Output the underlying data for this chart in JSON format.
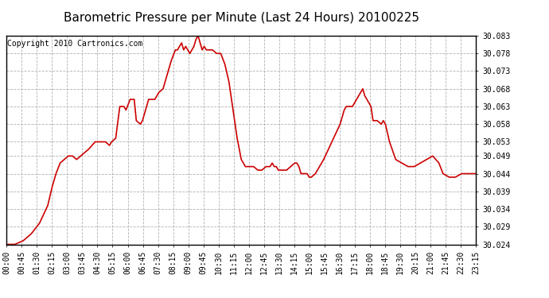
{
  "title": "Barometric Pressure per Minute (Last 24 Hours) 20100225",
  "copyright": "Copyright 2010 Cartronics.com",
  "line_color": "#cc0000",
  "background_color": "#ffffff",
  "grid_color": "#aaaaaa",
  "ylim": [
    30.024,
    30.083
  ],
  "yticks": [
    30.083,
    30.078,
    30.073,
    30.068,
    30.063,
    30.058,
    30.053,
    30.049,
    30.044,
    30.039,
    30.034,
    30.029,
    30.024
  ],
  "xtick_labels": [
    "00:00",
    "00:45",
    "01:30",
    "02:15",
    "03:00",
    "03:45",
    "04:30",
    "05:15",
    "06:00",
    "06:45",
    "07:30",
    "08:15",
    "09:00",
    "09:45",
    "10:30",
    "11:15",
    "12:00",
    "12:45",
    "13:30",
    "14:15",
    "15:00",
    "15:45",
    "16:30",
    "17:15",
    "18:00",
    "18:45",
    "19:30",
    "20:15",
    "21:00",
    "21:45",
    "22:30",
    "23:15"
  ],
  "title_fontsize": 11,
  "copyright_fontsize": 7,
  "tick_fontsize": 7,
  "line_width": 1.2,
  "keypoints": [
    [
      0,
      30.024
    ],
    [
      20,
      30.024
    ],
    [
      40,
      30.025
    ],
    [
      60,
      30.027
    ],
    [
      80,
      30.03
    ],
    [
      100,
      30.035
    ],
    [
      110,
      30.04
    ],
    [
      120,
      30.044
    ],
    [
      130,
      30.047
    ],
    [
      140,
      30.048
    ],
    [
      150,
      30.049
    ],
    [
      160,
      30.049
    ],
    [
      170,
      30.048
    ],
    [
      180,
      30.049
    ],
    [
      190,
      30.05
    ],
    [
      200,
      30.051
    ],
    [
      215,
      30.053
    ],
    [
      230,
      30.053
    ],
    [
      240,
      30.053
    ],
    [
      250,
      30.052
    ],
    [
      255,
      30.053
    ],
    [
      265,
      30.054
    ],
    [
      275,
      30.063
    ],
    [
      285,
      30.063
    ],
    [
      290,
      30.062
    ],
    [
      300,
      30.065
    ],
    [
      310,
      30.065
    ],
    [
      315,
      30.059
    ],
    [
      325,
      30.058
    ],
    [
      330,
      30.059
    ],
    [
      340,
      30.063
    ],
    [
      345,
      30.065
    ],
    [
      350,
      30.065
    ],
    [
      360,
      30.065
    ],
    [
      370,
      30.067
    ],
    [
      380,
      30.068
    ],
    [
      390,
      30.072
    ],
    [
      400,
      30.076
    ],
    [
      410,
      30.079
    ],
    [
      415,
      30.079
    ],
    [
      420,
      30.08
    ],
    [
      425,
      30.081
    ],
    [
      430,
      30.079
    ],
    [
      435,
      30.08
    ],
    [
      440,
      30.079
    ],
    [
      445,
      30.078
    ],
    [
      450,
      30.079
    ],
    [
      455,
      30.08
    ],
    [
      460,
      30.082
    ],
    [
      465,
      30.083
    ],
    [
      470,
      30.081
    ],
    [
      475,
      30.079
    ],
    [
      480,
      30.08
    ],
    [
      485,
      30.079
    ],
    [
      490,
      30.079
    ],
    [
      500,
      30.079
    ],
    [
      510,
      30.078
    ],
    [
      515,
      30.078
    ],
    [
      520,
      30.078
    ],
    [
      530,
      30.075
    ],
    [
      540,
      30.07
    ],
    [
      550,
      30.062
    ],
    [
      560,
      30.054
    ],
    [
      570,
      30.048
    ],
    [
      580,
      30.046
    ],
    [
      590,
      30.046
    ],
    [
      600,
      30.046
    ],
    [
      610,
      30.045
    ],
    [
      620,
      30.045
    ],
    [
      630,
      30.046
    ],
    [
      640,
      30.046
    ],
    [
      645,
      30.047
    ],
    [
      650,
      30.046
    ],
    [
      655,
      30.046
    ],
    [
      660,
      30.045
    ],
    [
      670,
      30.045
    ],
    [
      680,
      30.045
    ],
    [
      690,
      30.046
    ],
    [
      700,
      30.047
    ],
    [
      705,
      30.047
    ],
    [
      710,
      30.046
    ],
    [
      715,
      30.044
    ],
    [
      720,
      30.044
    ],
    [
      730,
      30.044
    ],
    [
      735,
      30.043
    ],
    [
      740,
      30.043
    ],
    [
      750,
      30.044
    ],
    [
      760,
      30.046
    ],
    [
      770,
      30.048
    ],
    [
      790,
      30.053
    ],
    [
      810,
      30.058
    ],
    [
      820,
      30.062
    ],
    [
      825,
      30.063
    ],
    [
      835,
      30.063
    ],
    [
      840,
      30.063
    ],
    [
      850,
      30.065
    ],
    [
      855,
      30.066
    ],
    [
      860,
      30.067
    ],
    [
      865,
      30.068
    ],
    [
      870,
      30.066
    ],
    [
      875,
      30.065
    ],
    [
      880,
      30.064
    ],
    [
      885,
      30.063
    ],
    [
      890,
      30.059
    ],
    [
      900,
      30.059
    ],
    [
      910,
      30.058
    ],
    [
      915,
      30.059
    ],
    [
      920,
      30.058
    ],
    [
      930,
      30.053
    ],
    [
      945,
      30.048
    ],
    [
      960,
      30.047
    ],
    [
      975,
      30.046
    ],
    [
      990,
      30.046
    ],
    [
      1005,
      30.047
    ],
    [
      1020,
      30.048
    ],
    [
      1035,
      30.049
    ],
    [
      1050,
      30.047
    ],
    [
      1060,
      30.044
    ],
    [
      1075,
      30.043
    ],
    [
      1090,
      30.043
    ],
    [
      1105,
      30.044
    ],
    [
      1120,
      30.044
    ],
    [
      1140,
      30.044
    ]
  ]
}
